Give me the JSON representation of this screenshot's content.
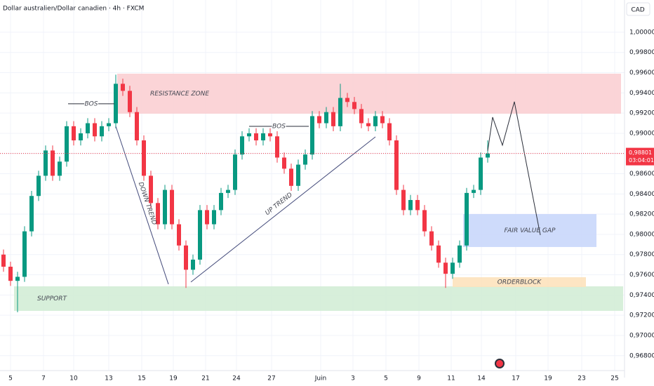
{
  "chart_data": {
    "type": "candlestick",
    "title": "Dollar australien/Dollar canadien · 4h · FXCM",
    "currency_label": "CAD",
    "up_color": "#089981",
    "down_color": "#f23645",
    "grid": true,
    "xlim": [
      -0.5,
      88.5
    ],
    "xticks": [
      {
        "value": 1.0,
        "label": "5"
      },
      {
        "value": 5.7,
        "label": "7"
      },
      {
        "value": 10.0,
        "label": "10"
      },
      {
        "value": 15.0,
        "label": "13"
      },
      {
        "value": 19.7,
        "label": "15"
      },
      {
        "value": 24.2,
        "label": "19"
      },
      {
        "value": 28.8,
        "label": "21"
      },
      {
        "value": 33.2,
        "label": "24"
      },
      {
        "value": 38.2,
        "label": "27"
      },
      {
        "value": 45.2,
        "label": "Juin"
      },
      {
        "value": 49.8,
        "label": "3"
      },
      {
        "value": 54.5,
        "label": "5"
      },
      {
        "value": 59.2,
        "label": "9"
      },
      {
        "value": 63.8,
        "label": "11"
      },
      {
        "value": 68.1,
        "label": "14"
      },
      {
        "value": 73.0,
        "label": "17"
      },
      {
        "value": 77.6,
        "label": "19"
      },
      {
        "value": 82.4,
        "label": "23"
      },
      {
        "value": 87.1,
        "label": "25"
      }
    ],
    "ylim": [
      0.96583,
      1.00319
    ],
    "yticks": [
      {
        "value": 0.968,
        "label": "0,96800"
      },
      {
        "value": 0.97,
        "label": "0,97000"
      },
      {
        "value": 0.972,
        "label": "0,97200"
      },
      {
        "value": 0.974,
        "label": "0,97400"
      },
      {
        "value": 0.976,
        "label": "0,97600"
      },
      {
        "value": 0.978,
        "label": "0,97800"
      },
      {
        "value": 0.98,
        "label": "0,98000"
      },
      {
        "value": 0.982,
        "label": "0,98200"
      },
      {
        "value": 0.984,
        "label": "0,98400"
      },
      {
        "value": 0.986,
        "label": "0,98600"
      },
      {
        "value": 0.988,
        "label": "0,98800"
      },
      {
        "value": 0.99,
        "label": "0,99000"
      },
      {
        "value": 0.992,
        "label": "0,99200"
      },
      {
        "value": 0.994,
        "label": "0,99400"
      },
      {
        "value": 0.996,
        "label": "0,99600"
      },
      {
        "value": 0.998,
        "label": "0,99800"
      },
      {
        "value": 1.0,
        "label": "1,00000"
      }
    ],
    "open": [
      0.978,
      0.9768,
      0.9754,
      0.9758,
      0.9803,
      0.9838,
      0.9858,
      0.9883,
      0.9858,
      0.9872,
      0.9907,
      0.9893,
      0.99,
      0.991,
      0.9897,
      0.9907,
      0.991,
      0.9949,
      0.9942,
      0.9921,
      0.9893,
      0.9858,
      0.9831,
      0.981,
      0.9844,
      0.981,
      0.9789,
      0.9765,
      0.9775,
      0.9824,
      0.981,
      0.9824,
      0.9841,
      0.9844,
      0.9879,
      0.9897,
      0.99,
      0.9893,
      0.99,
      0.9897,
      0.9876,
      0.9865,
      0.9848,
      0.9869,
      0.9879,
      0.9917,
      0.991,
      0.9921,
      0.9907,
      0.9935,
      0.9931,
      0.9924,
      0.991,
      0.9907,
      0.9917,
      0.991,
      0.9893,
      0.9844,
      0.9824,
      0.9834,
      0.9824,
      0.9803,
      0.9789,
      0.9772,
      0.9761,
      0.9772,
      0.9789,
      0.9841,
      0.9844,
      0.9876
    ],
    "high": [
      0.9785,
      0.9773,
      0.9763,
      0.9808,
      0.9843,
      0.9863,
      0.9888,
      0.9888,
      0.9877,
      0.9912,
      0.9912,
      0.9905,
      0.9915,
      0.9915,
      0.9912,
      0.9915,
      0.9958,
      0.9954,
      0.9947,
      0.9926,
      0.9898,
      0.9863,
      0.9836,
      0.9849,
      0.9849,
      0.9815,
      0.9794,
      0.978,
      0.9829,
      0.9829,
      0.9829,
      0.9846,
      0.9849,
      0.9884,
      0.9902,
      0.9905,
      0.9905,
      0.9905,
      0.9905,
      0.9902,
      0.9881,
      0.987,
      0.9874,
      0.9884,
      0.9922,
      0.9922,
      0.9926,
      0.9926,
      0.9949,
      0.994,
      0.9936,
      0.9929,
      0.9915,
      0.9922,
      0.9922,
      0.9915,
      0.9898,
      0.9849,
      0.9839,
      0.9839,
      0.9829,
      0.9808,
      0.9794,
      0.9777,
      0.9777,
      0.9794,
      0.9846,
      0.9849,
      0.9881,
      0.9893
    ],
    "low": [
      0.9763,
      0.9749,
      0.9723,
      0.9753,
      0.9798,
      0.9833,
      0.9853,
      0.9853,
      0.9853,
      0.9867,
      0.9888,
      0.9888,
      0.9895,
      0.9892,
      0.9892,
      0.9902,
      0.9905,
      0.9937,
      0.9916,
      0.9888,
      0.9853,
      0.9826,
      0.9805,
      0.9805,
      0.9805,
      0.9784,
      0.9747,
      0.976,
      0.977,
      0.9805,
      0.9805,
      0.9819,
      0.9836,
      0.9839,
      0.9874,
      0.9892,
      0.9888,
      0.9888,
      0.9892,
      0.9871,
      0.986,
      0.9843,
      0.9843,
      0.9864,
      0.9874,
      0.9905,
      0.9905,
      0.9902,
      0.9902,
      0.9926,
      0.9919,
      0.9905,
      0.9902,
      0.9902,
      0.9905,
      0.9888,
      0.9839,
      0.9819,
      0.9819,
      0.9819,
      0.9798,
      0.9784,
      0.9767,
      0.9747,
      0.9756,
      0.9767,
      0.9784,
      0.9836,
      0.9839,
      0.9871
    ],
    "close": [
      0.9768,
      0.9754,
      0.9758,
      0.9803,
      0.9838,
      0.9858,
      0.9883,
      0.9858,
      0.9872,
      0.9907,
      0.9893,
      0.99,
      0.991,
      0.9897,
      0.9907,
      0.991,
      0.9949,
      0.9942,
      0.9921,
      0.9893,
      0.9858,
      0.9831,
      0.981,
      0.9844,
      0.981,
      0.9789,
      0.9765,
      0.9775,
      0.9824,
      0.981,
      0.9824,
      0.9841,
      0.9844,
      0.9879,
      0.9897,
      0.99,
      0.9893,
      0.99,
      0.9897,
      0.9876,
      0.9865,
      0.9848,
      0.9869,
      0.9879,
      0.9917,
      0.991,
      0.9921,
      0.9907,
      0.9935,
      0.9931,
      0.9924,
      0.991,
      0.9907,
      0.9917,
      0.991,
      0.9893,
      0.9844,
      0.9824,
      0.9834,
      0.9824,
      0.9803,
      0.9789,
      0.9772,
      0.9761,
      0.9772,
      0.9789,
      0.9841,
      0.9844,
      0.9876,
      0.988
    ],
    "last_price": 0.98801,
    "last_price_label": "0,98801",
    "countdown": "03:04:01",
    "last_price_color": "#f23645",
    "zones": [
      {
        "label": "RESISTANCE ZONE",
        "color": "#fbcfd3",
        "xlim": [
          16.2,
          88.0
        ],
        "ylim": [
          0.99194,
          0.9959
        ]
      },
      {
        "label": "SUPPORT",
        "color": "#d3edd6",
        "xlim": [
          1.5,
          88.3
        ],
        "ylim": [
          0.97243,
          0.97486
        ]
      },
      {
        "label": "FAIR VALUE GAP",
        "color": "#c9d7fb",
        "xlim": [
          65.5,
          84.5
        ],
        "ylim": [
          0.97875,
          0.98201
        ]
      },
      {
        "label": "ORDERBLOCK",
        "color": "#fde2bd",
        "xlim": [
          64.0,
          83.0
        ],
        "ylim": [
          0.97479,
          0.97576
        ]
      }
    ],
    "trend_lines": [
      {
        "label": "DOWN TREND",
        "x": [
          16.0,
          23.5
        ],
        "y": [
          0.99069,
          0.97507
        ]
      },
      {
        "label": "UP TREND",
        "x": [
          26.7,
          53.0
        ],
        "y": [
          0.97528,
          0.98965
        ]
      }
    ],
    "bos": [
      {
        "label": "BOS",
        "x": [
          9.2,
          15.8
        ],
        "y": 0.99292
      },
      {
        "label": "BOS",
        "x": [
          35.0,
          43.5
        ],
        "y": 0.99069
      }
    ],
    "projection": {
      "x": [
        69.0,
        69.7,
        71.1,
        72.8,
        76.5
      ],
      "y": [
        0.98826,
        0.9916,
        0.98882,
        0.99313,
        0.97993
      ]
    }
  }
}
